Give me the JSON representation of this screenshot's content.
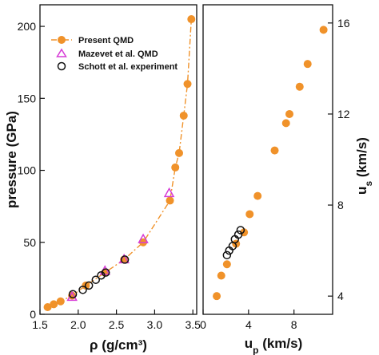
{
  "colors": {
    "present": "#f0922a",
    "mazevet": "#d63cd6",
    "schott": "#111111",
    "axis": "#111111"
  },
  "chart_data": [
    {
      "type": "scatter",
      "panel": "left",
      "xlabel": "ρ (g/cm³)",
      "ylabel": "pressure (GPa)",
      "xlim": [
        1.5,
        3.55
      ],
      "ylim": [
        0,
        215
      ],
      "xticks": [
        1.5,
        2.0,
        2.5,
        3.0,
        3.5
      ],
      "xtick_labels": [
        "1.5",
        "2.0",
        "2.5",
        "3.0",
        "3.5"
      ],
      "yticks": [
        0,
        50,
        100,
        150,
        200
      ],
      "ytick_labels": [
        "0",
        "50",
        "100",
        "150",
        "200"
      ],
      "legend_position": "top-left",
      "series": [
        {
          "name": "Present QMD",
          "marker": "filled-circle",
          "line": "dash-dot",
          "x": [
            1.6,
            1.68,
            1.77,
            1.92,
            2.1,
            2.35,
            2.6,
            2.85,
            3.2,
            3.27,
            3.32,
            3.38,
            3.43,
            3.48
          ],
          "y": [
            5,
            7,
            9,
            13,
            20,
            29,
            38,
            50,
            79,
            102,
            112,
            138,
            160,
            205
          ]
        },
        {
          "name": "Mazevet et al. QMD",
          "marker": "open-triangle",
          "x": [
            1.92,
            2.35,
            2.6,
            2.85,
            3.19
          ],
          "y": [
            12,
            30,
            38,
            52,
            84
          ]
        },
        {
          "name": "Schott et al. experiment",
          "marker": "open-circle",
          "x": [
            1.93,
            2.06,
            2.14,
            2.23,
            2.3,
            2.36,
            2.61
          ],
          "y": [
            14,
            17,
            20,
            24,
            27,
            29,
            38
          ]
        }
      ]
    },
    {
      "type": "scatter",
      "panel": "right",
      "xlabel": "u_p (km/s)",
      "ylabel": "u_s (km/s)",
      "xlim": [
        0,
        11.4
      ],
      "ylim": [
        3.2,
        16.8
      ],
      "xticks": [
        0,
        4,
        8
      ],
      "xtick_labels": [
        "0",
        "4",
        "8"
      ],
      "yticks": [
        4,
        8,
        12,
        16
      ],
      "ytick_labels": [
        "4",
        "8",
        "12",
        "16"
      ],
      "series": [
        {
          "name": "Present QMD",
          "marker": "filled-circle",
          "x": [
            1.2,
            1.6,
            2.1,
            2.9,
            3.6,
            4.1,
            4.8,
            6.3,
            7.3,
            7.6,
            8.5,
            9.2,
            10.6
          ],
          "y": [
            4.0,
            4.9,
            5.4,
            6.3,
            6.8,
            7.6,
            8.4,
            10.4,
            11.6,
            12.0,
            13.2,
            14.2,
            15.7
          ]
        },
        {
          "name": "Schott et al. experiment",
          "marker": "open-circle",
          "x": [
            2.1,
            2.3,
            2.6,
            2.8,
            3.1,
            3.3
          ],
          "y": [
            5.8,
            6.0,
            6.2,
            6.5,
            6.7,
            6.9
          ]
        }
      ]
    }
  ]
}
